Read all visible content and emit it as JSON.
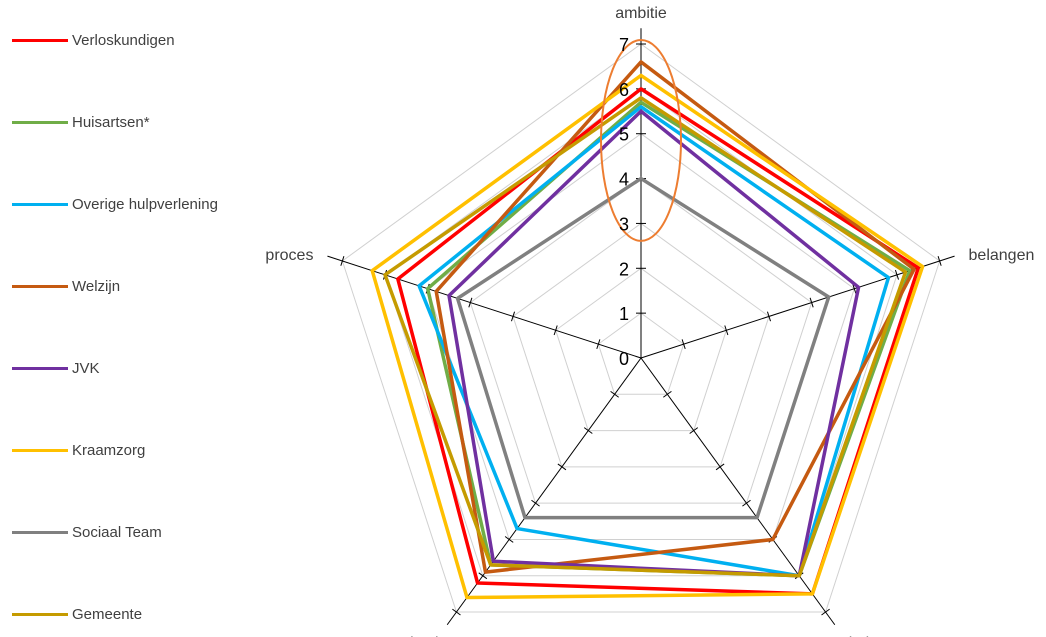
{
  "chart_data": {
    "type": "radar",
    "title": "",
    "axes": [
      "ambitie",
      "belangen",
      "relatie",
      "organisatie",
      "proces"
    ],
    "range": [
      0,
      7
    ],
    "ticks": [
      "0",
      "1",
      "2",
      "3",
      "4",
      "5",
      "6",
      "7"
    ],
    "grid": true,
    "legend_position": "left",
    "highlight": {
      "axis": "ambitie",
      "range": [
        2.7,
        7.0
      ],
      "color": "#ED7D31"
    },
    "series": [
      {
        "name": "Verloskundigen",
        "color": "#FF0000",
        "values": [
          6.0,
          6.5,
          6.5,
          6.2,
          5.7
        ]
      },
      {
        "name": "Huisartsen*",
        "color": "#70AD47",
        "values": [
          5.7,
          6.3,
          6.0,
          5.7,
          5.0
        ]
      },
      {
        "name": "Overige hulpverlening",
        "color": "#00B0F0",
        "values": [
          5.6,
          5.8,
          6.0,
          4.7,
          5.2
        ]
      },
      {
        "name": "Welzijn",
        "color": "#C55A11",
        "values": [
          6.6,
          6.4,
          5.0,
          5.9,
          4.8
        ]
      },
      {
        "name": "JVK",
        "color": "#7030A0",
        "values": [
          5.5,
          5.1,
          6.0,
          5.6,
          4.5
        ]
      },
      {
        "name": "Kraamzorg",
        "color": "#FFC000",
        "values": [
          6.3,
          6.6,
          6.5,
          6.6,
          6.3
        ]
      },
      {
        "name": "Sociaal Team",
        "color": "#808080",
        "values": [
          4.0,
          4.4,
          4.4,
          4.4,
          4.3
        ]
      },
      {
        "name": "Gemeente",
        "color": "#C59B00",
        "values": [
          5.8,
          6.2,
          6.0,
          5.7,
          6.0
        ]
      }
    ]
  }
}
